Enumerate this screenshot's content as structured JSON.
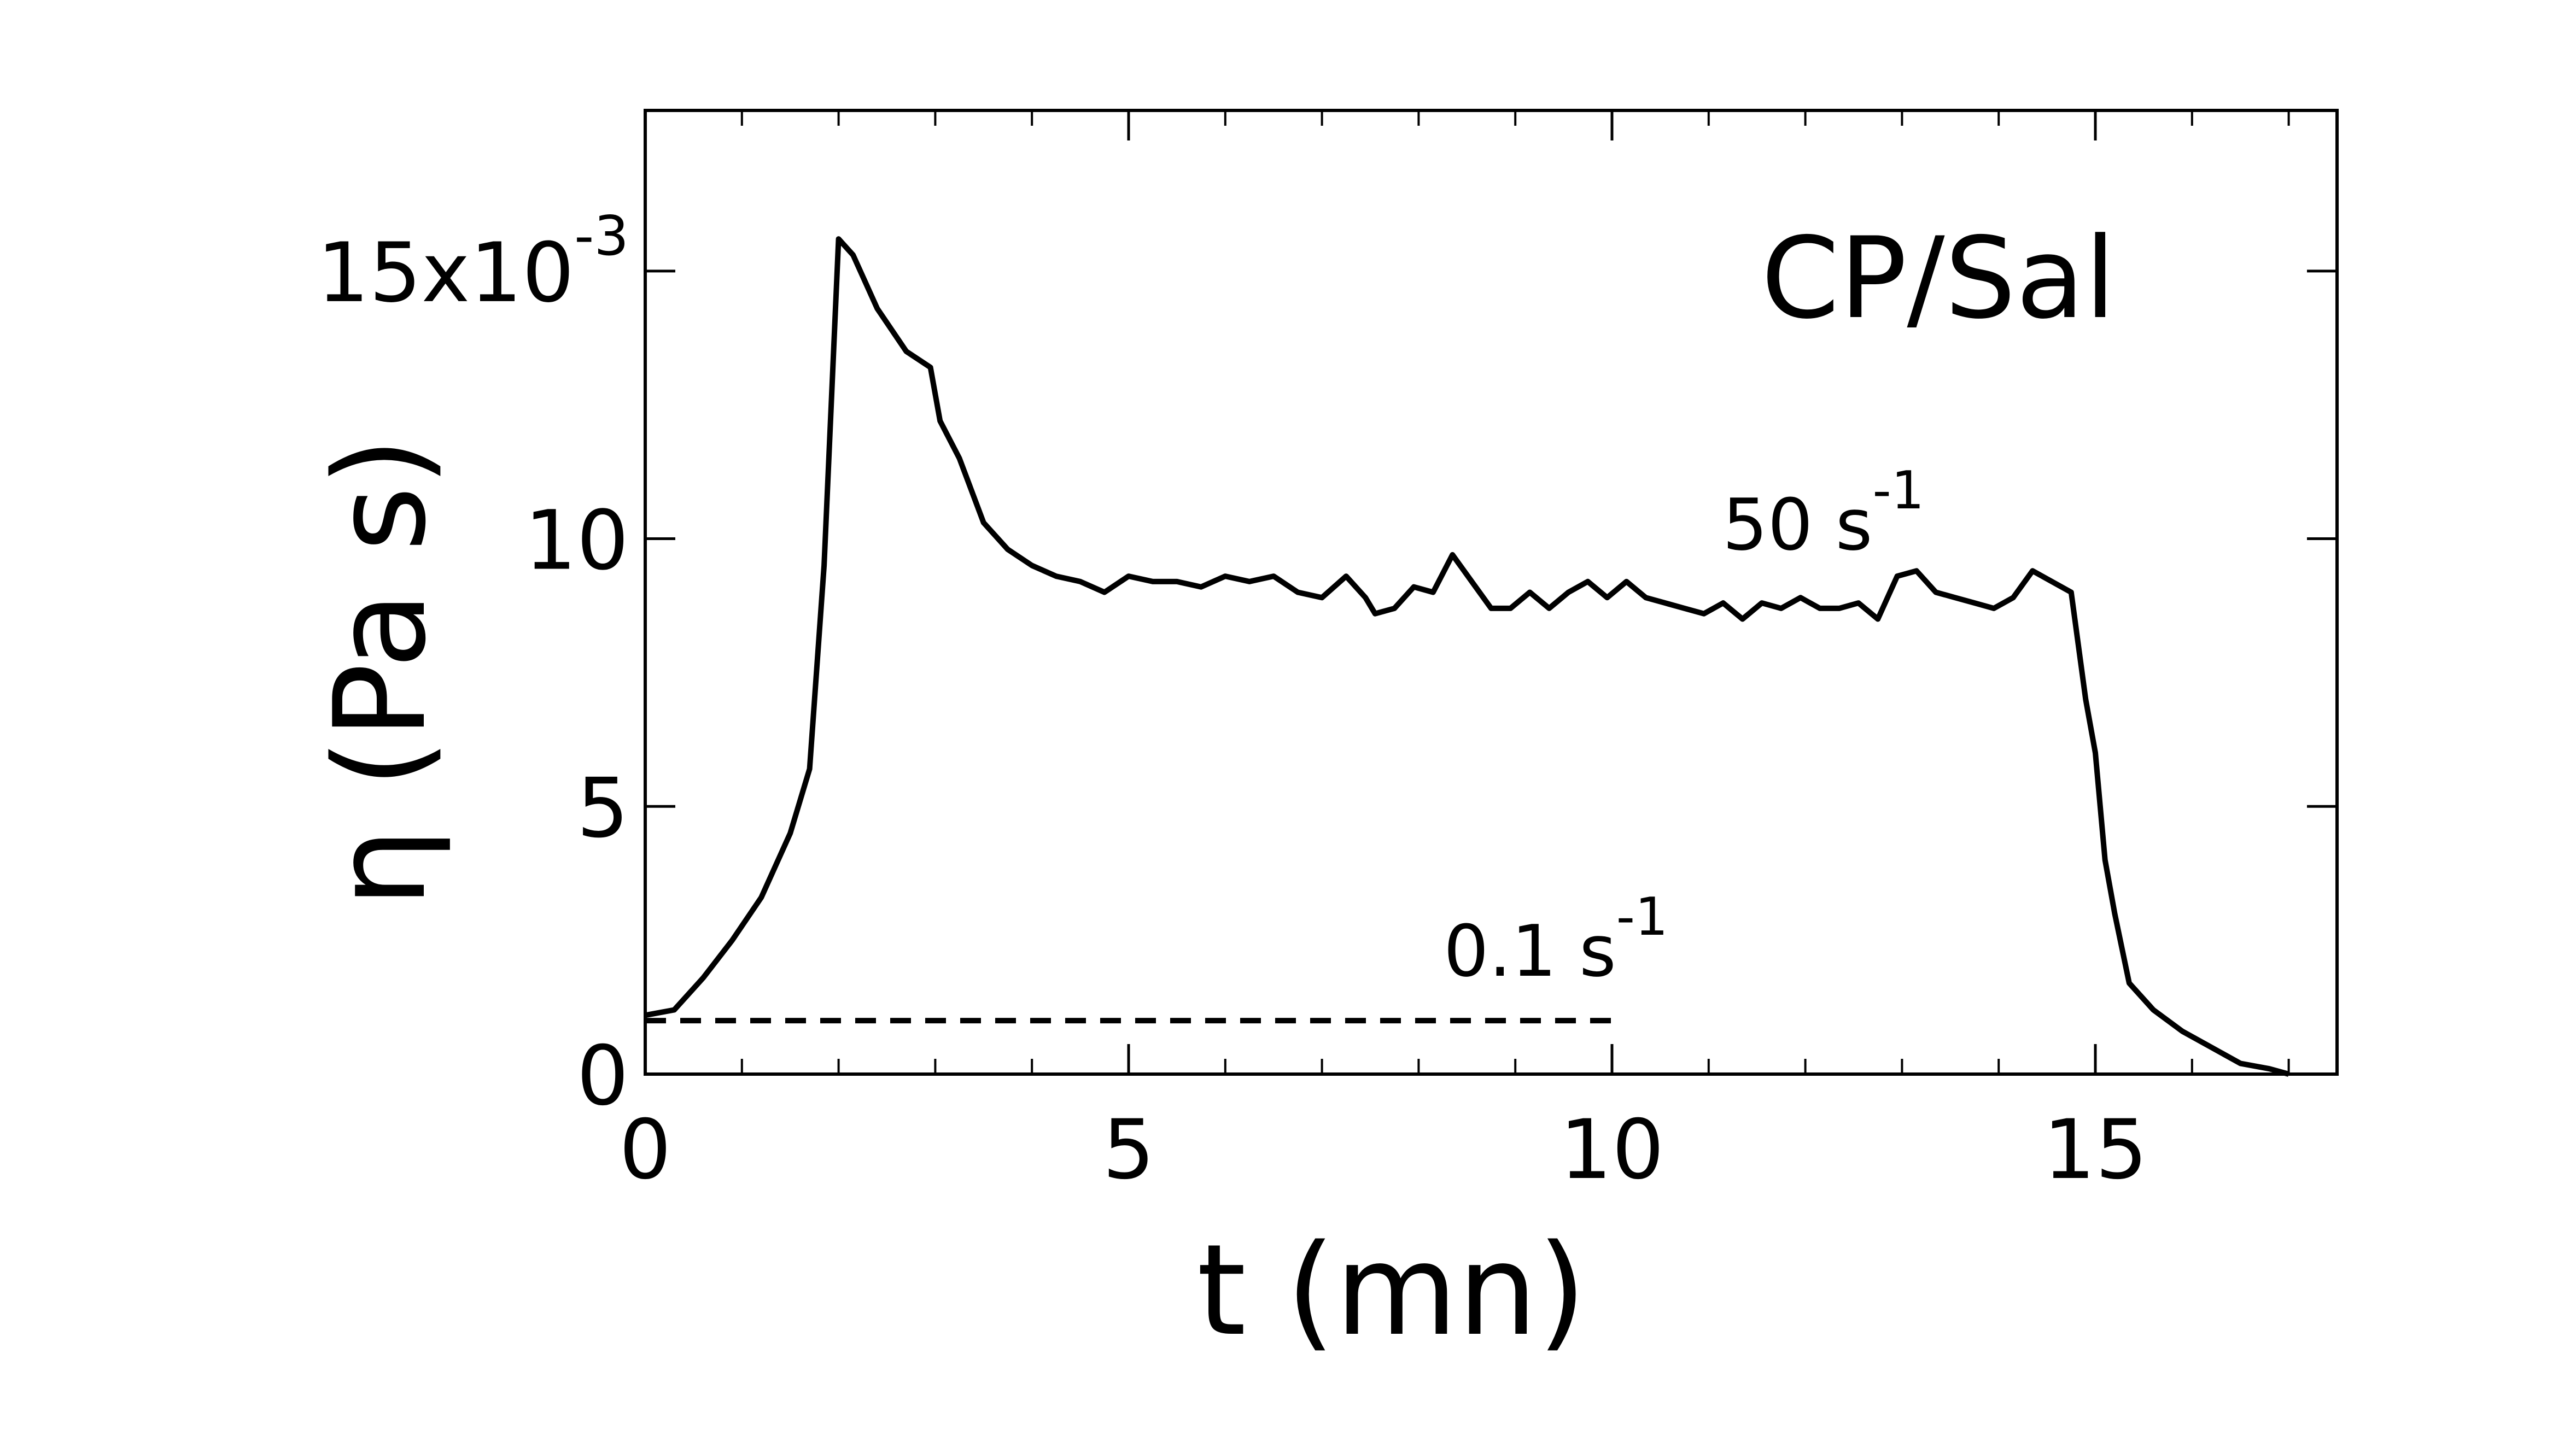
{
  "chart_data": {
    "type": "line",
    "title": "",
    "panel_label": "CP/Sal",
    "xlabel": "t (mn)",
    "ylabel": "η (Pa s)",
    "xlim": [
      0,
      17.5
    ],
    "ylim": [
      0,
      0.018
    ],
    "xticks": [
      0,
      5,
      10,
      15
    ],
    "x_tick_labels": [
      "0",
      "5",
      "10",
      "15"
    ],
    "yticks": [
      0,
      0.005,
      0.01,
      0.015
    ],
    "y_tick_labels": [
      "0",
      "5",
      "10",
      "15x10"
    ],
    "y_tick_exponent": "-3",
    "series": [
      {
        "name": "50 s-1",
        "label_text": "50 s",
        "label_sup": "-1",
        "style": "solid",
        "x": [
          0,
          0.3,
          0.6,
          0.9,
          1.2,
          1.5,
          1.7,
          1.85,
          2.0,
          2.15,
          2.4,
          2.7,
          2.95,
          3.05,
          3.25,
          3.5,
          3.75,
          4.0,
          4.25,
          4.5,
          4.75,
          5.0,
          5.25,
          5.5,
          5.75,
          6.0,
          6.25,
          6.5,
          6.75,
          7.0,
          7.25,
          7.45,
          7.55,
          7.75,
          7.95,
          8.15,
          8.35,
          8.55,
          8.75,
          8.95,
          9.15,
          9.35,
          9.55,
          9.75,
          9.95,
          10.15,
          10.35,
          10.55,
          10.75,
          10.95,
          11.15,
          11.35,
          11.55,
          11.75,
          11.95,
          12.15,
          12.35,
          12.55,
          12.75,
          12.95,
          13.15,
          13.35,
          13.55,
          13.75,
          13.95,
          14.15,
          14.35,
          14.55,
          14.75,
          14.9,
          15.0,
          15.1,
          15.2,
          15.35,
          15.6,
          15.9,
          16.2,
          16.5,
          16.8,
          17.0
        ],
        "y": [
          0.0011,
          0.0012,
          0.0018,
          0.0025,
          0.0033,
          0.0045,
          0.0057,
          0.0095,
          0.0156,
          0.0153,
          0.0143,
          0.0135,
          0.0132,
          0.0122,
          0.0115,
          0.0103,
          0.0098,
          0.0095,
          0.0093,
          0.0092,
          0.009,
          0.0093,
          0.0092,
          0.0092,
          0.0091,
          0.0093,
          0.0092,
          0.0093,
          0.009,
          0.0089,
          0.0093,
          0.0089,
          0.0086,
          0.0087,
          0.0091,
          0.009,
          0.0097,
          0.0092,
          0.0087,
          0.0087,
          0.009,
          0.0087,
          0.009,
          0.0092,
          0.0089,
          0.0092,
          0.0089,
          0.0088,
          0.0087,
          0.0086,
          0.0088,
          0.0085,
          0.0088,
          0.0087,
          0.0089,
          0.0087,
          0.0087,
          0.0088,
          0.0085,
          0.0093,
          0.0094,
          0.009,
          0.0089,
          0.0088,
          0.0087,
          0.0089,
          0.0094,
          0.0092,
          0.009,
          0.007,
          0.006,
          0.004,
          0.003,
          0.0017,
          0.0012,
          0.0008,
          0.0005,
          0.0002,
          0.0001,
          0.0
        ]
      },
      {
        "name": "0.1 s-1",
        "label_text": "0.1 s",
        "label_sup": "-1",
        "style": "dashed",
        "x": [
          0,
          10
        ],
        "y": [
          0.001,
          0.001
        ]
      }
    ],
    "grid": false,
    "legend": "none",
    "colors": {
      "line": "#000000",
      "background": "#ffffff"
    }
  }
}
